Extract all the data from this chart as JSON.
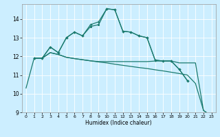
{
  "xlabel": "Humidex (Indice chaleur)",
  "background_color": "#cceeff",
  "line_color": "#1a7a6e",
  "grid_color": "#ffffff",
  "xlim": [
    -0.5,
    23.5
  ],
  "ylim": [
    9,
    14.8
  ],
  "yticks": [
    9,
    10,
    11,
    12,
    13,
    14
  ],
  "xticks": [
    0,
    1,
    2,
    3,
    4,
    5,
    6,
    7,
    8,
    9,
    10,
    11,
    12,
    13,
    14,
    15,
    16,
    17,
    18,
    19,
    20,
    21,
    22,
    23
  ],
  "s1_x": [
    0,
    1,
    2,
    3,
    4,
    5,
    6,
    7,
    8,
    9,
    10,
    11,
    12,
    13,
    14,
    15,
    16,
    17,
    18,
    19,
    20,
    21,
    22,
    23
  ],
  "s1_y": [
    10.3,
    11.9,
    11.9,
    12.2,
    12.1,
    11.95,
    11.88,
    11.82,
    11.76,
    11.7,
    11.65,
    11.58,
    11.52,
    11.46,
    11.4,
    11.35,
    11.28,
    11.22,
    11.15,
    11.08,
    11.0,
    10.55,
    9.1,
    8.8
  ],
  "s2_x": [
    2,
    3,
    4,
    5,
    6,
    7,
    8,
    9,
    10,
    11,
    12,
    13,
    14,
    15,
    16,
    17,
    18,
    19,
    20,
    21,
    22,
    23
  ],
  "s2_y": [
    11.9,
    12.2,
    12.1,
    11.95,
    11.88,
    11.82,
    11.76,
    11.72,
    11.72,
    11.72,
    11.72,
    11.72,
    11.72,
    11.72,
    11.75,
    11.75,
    11.75,
    11.65,
    11.65,
    11.65,
    9.1,
    8.8
  ],
  "s3_x": [
    1,
    2,
    3,
    4,
    5,
    6,
    7,
    8,
    9,
    10,
    11,
    12,
    13,
    14,
    15,
    16,
    17,
    18,
    19,
    20
  ],
  "s3_y": [
    11.9,
    11.9,
    12.5,
    12.2,
    13.0,
    13.3,
    13.1,
    13.7,
    13.85,
    14.55,
    14.5,
    13.35,
    13.3,
    13.1,
    13.0,
    11.8,
    11.75,
    11.75,
    11.3,
    10.7
  ],
  "s4_x": [
    1,
    2,
    3,
    4,
    5,
    6,
    7,
    8,
    9,
    10,
    11,
    12,
    13,
    14,
    15,
    16,
    17,
    18,
    19,
    20
  ],
  "s4_y": [
    11.9,
    11.9,
    12.5,
    12.2,
    13.0,
    13.3,
    13.1,
    13.6,
    13.7,
    14.55,
    14.5,
    13.35,
    13.3,
    13.1,
    13.0,
    11.8,
    11.75,
    11.75,
    11.3,
    10.7
  ]
}
